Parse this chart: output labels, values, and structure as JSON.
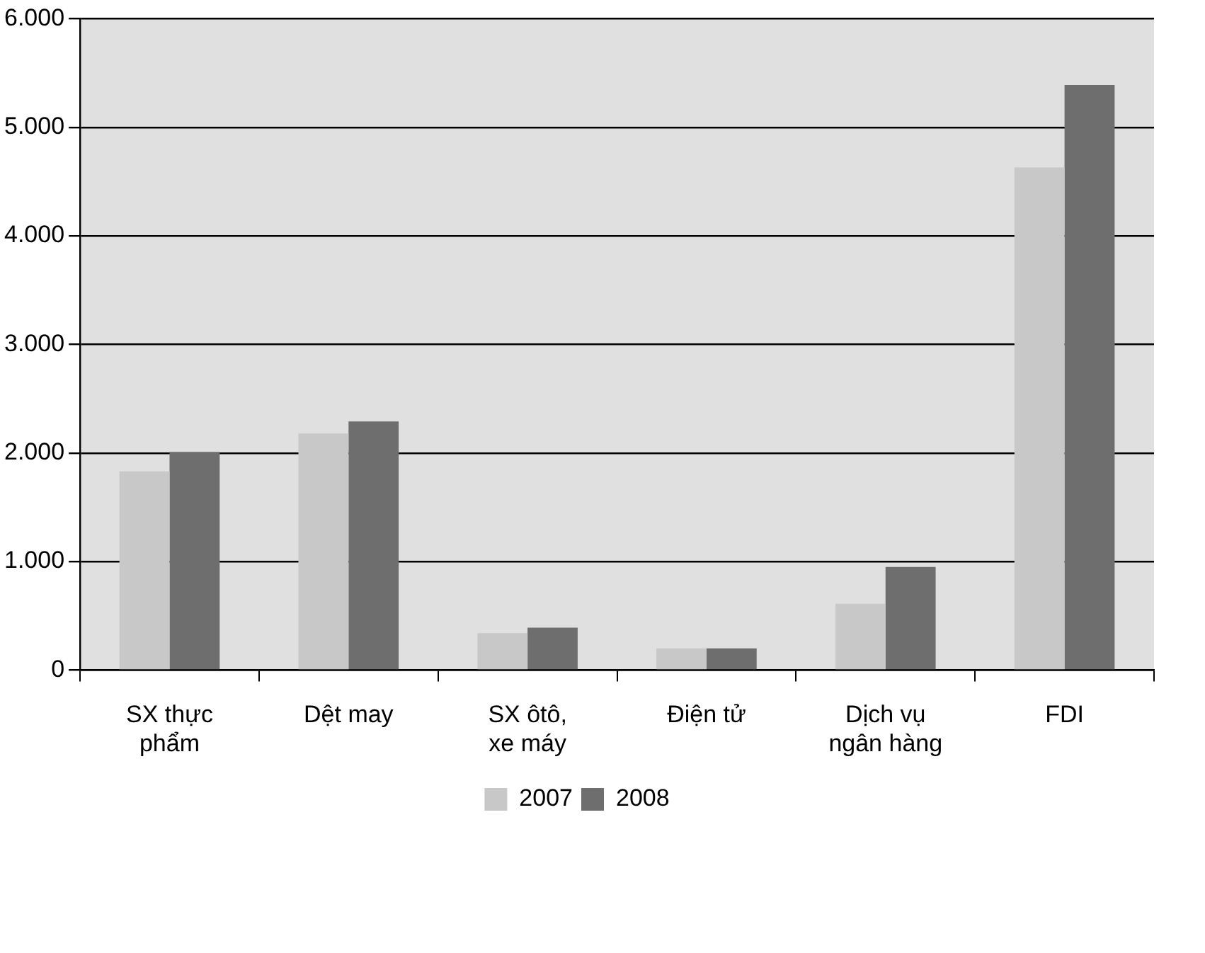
{
  "chart_data": {
    "type": "bar",
    "categories": [
      "SX thực phẩm",
      "Dệt may",
      "SX ôtô, xe máy",
      "Điện tử",
      "Dịch vụ ngân hàng",
      "FDI"
    ],
    "series": [
      {
        "name": "2007",
        "color": "#c8c8c8",
        "values": [
          1830,
          2180,
          340,
          200,
          610,
          4630
        ]
      },
      {
        "name": "2008",
        "color": "#6e6e6e",
        "values": [
          2010,
          2290,
          390,
          200,
          950,
          5390
        ]
      }
    ],
    "ylim": [
      0,
      6000
    ],
    "yticks": [
      0,
      {
        "value": 1000,
        "label": "1.000"
      },
      {
        "value": 2000,
        "label": "2.000"
      },
      {
        "value": 3000,
        "label": "3.000"
      },
      {
        "value": 4000,
        "label": "4.000"
      },
      {
        "value": 5000,
        "label": "5.000"
      },
      {
        "value": 6000,
        "label": "6.000"
      }
    ],
    "grid": "y",
    "legend": "bottom"
  }
}
